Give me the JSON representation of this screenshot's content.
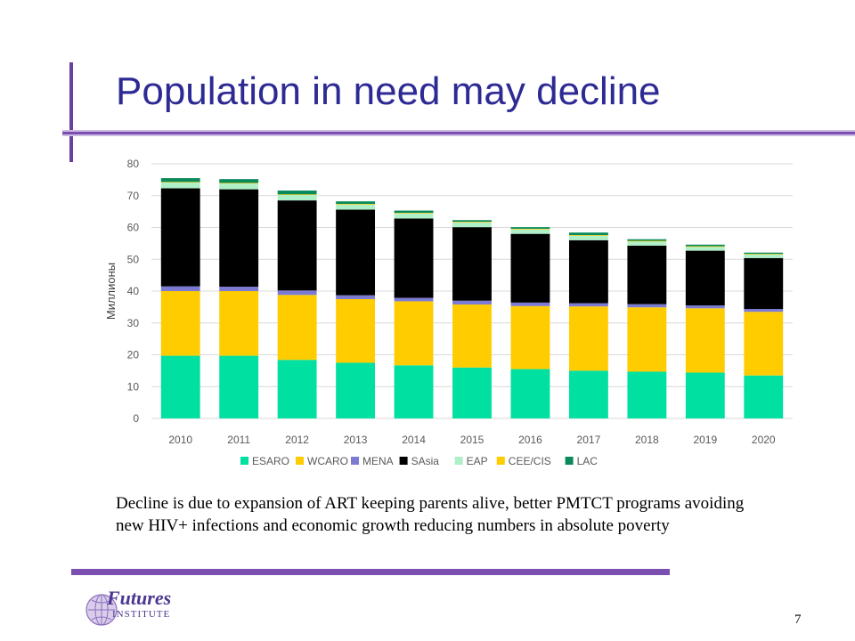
{
  "slide": {
    "title": "Population in need may decline",
    "caption": "Decline is due to expansion of ART keeping parents alive, better PMTCT programs avoiding new HIV+ infections and economic growth reducing numbers in absolute poverty",
    "page_number": "7",
    "logo_word": "Futures",
    "logo_sub": "INSTITUTE",
    "accent_color": "#2e2a94",
    "bar_color": "#7a4fb0"
  },
  "chart_data": {
    "type": "bar",
    "stacked": true,
    "ylabel": "Миллионы",
    "xlabel": "",
    "ylim": [
      0,
      80
    ],
    "yticks": [
      0,
      10,
      20,
      30,
      40,
      50,
      60,
      70,
      80
    ],
    "grid": true,
    "legend_position": "bottom",
    "categories": [
      "2010",
      "2011",
      "2012",
      "2013",
      "2014",
      "2015",
      "2016",
      "2017",
      "2018",
      "2019",
      "2020"
    ],
    "series": [
      {
        "name": "ESARO",
        "color": "#00e0a0",
        "values": [
          19.7,
          19.7,
          18.4,
          17.5,
          16.7,
          16.0,
          15.5,
          15.0,
          14.7,
          14.4,
          13.5
        ]
      },
      {
        "name": "WCARO",
        "color": "#ffcc00",
        "values": [
          20.3,
          20.3,
          20.4,
          20.0,
          20.1,
          19.8,
          19.8,
          20.2,
          20.2,
          20.2,
          20.0
        ]
      },
      {
        "name": "MENA",
        "color": "#7b7bd4",
        "values": [
          1.5,
          1.4,
          1.4,
          1.2,
          1.1,
          1.2,
          1.1,
          1.0,
          1.0,
          0.9,
          0.9
        ]
      },
      {
        "name": "SAsia",
        "color": "#000000",
        "values": [
          30.8,
          30.6,
          28.3,
          26.9,
          24.9,
          23.1,
          21.6,
          19.8,
          18.4,
          17.2,
          16.0
        ]
      },
      {
        "name": "EAP",
        "color": "#b0f0c8",
        "values": [
          1.8,
          1.8,
          1.7,
          1.6,
          1.6,
          1.5,
          1.4,
          1.4,
          1.3,
          1.2,
          1.1
        ]
      },
      {
        "name": "CEE/CIS",
        "color": "#ffcc00",
        "values": [
          0.2,
          0.2,
          0.2,
          0.2,
          0.2,
          0.2,
          0.2,
          0.2,
          0.2,
          0.2,
          0.2
        ]
      },
      {
        "name": "LAC",
        "color": "#0a8a5a",
        "values": [
          1.2,
          1.2,
          1.2,
          0.8,
          0.7,
          0.5,
          0.5,
          0.8,
          0.5,
          0.5,
          0.4
        ]
      }
    ]
  }
}
